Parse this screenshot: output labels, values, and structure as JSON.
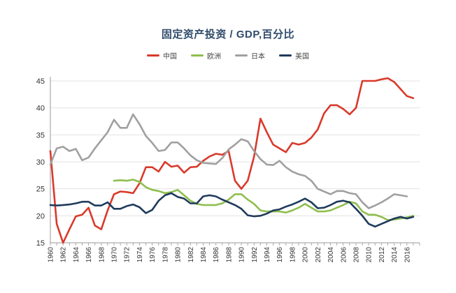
{
  "chart_data": {
    "type": "line",
    "title": "固定资产投资 / GDP,百分比",
    "xlabel": "",
    "ylabel": "",
    "xlim": [
      1960,
      2018
    ],
    "ylim": [
      15,
      45
    ],
    "yticks": [
      15,
      20,
      25,
      30,
      35,
      40,
      45
    ],
    "xticks": [
      1960,
      1962,
      1964,
      1966,
      1968,
      1970,
      1972,
      1974,
      1976,
      1978,
      1980,
      1982,
      1984,
      1986,
      1988,
      1990,
      1992,
      1994,
      1996,
      1998,
      2000,
      2002,
      2004,
      2006,
      2008,
      2010,
      2012,
      2014,
      2016
    ],
    "grid": true,
    "legend_position": "top-center",
    "series": [
      {
        "name": "中国",
        "color": "#d93a2b",
        "points": [
          [
            1960,
            32.0
          ],
          [
            1961,
            18.5
          ],
          [
            1962,
            15.0
          ],
          [
            1963,
            17.5
          ],
          [
            1964,
            19.9
          ],
          [
            1965,
            20.2
          ],
          [
            1966,
            21.5
          ],
          [
            1967,
            18.2
          ],
          [
            1968,
            17.5
          ],
          [
            1969,
            21.0
          ],
          [
            1970,
            24.0
          ],
          [
            1971,
            24.5
          ],
          [
            1972,
            24.4
          ],
          [
            1973,
            24.2
          ],
          [
            1974,
            26.0
          ],
          [
            1975,
            29.0
          ],
          [
            1976,
            29.0
          ],
          [
            1977,
            28.2
          ],
          [
            1978,
            30.0
          ],
          [
            1979,
            29.1
          ],
          [
            1980,
            29.3
          ],
          [
            1981,
            28.0
          ],
          [
            1982,
            29.0
          ],
          [
            1983,
            29.1
          ],
          [
            1984,
            30.2
          ],
          [
            1985,
            31.0
          ],
          [
            1986,
            31.5
          ],
          [
            1987,
            31.3
          ],
          [
            1988,
            32.0
          ],
          [
            1989,
            26.5
          ],
          [
            1990,
            25.0
          ],
          [
            1991,
            26.5
          ],
          [
            1992,
            31.0
          ],
          [
            1993,
            38.0
          ],
          [
            1994,
            35.5
          ],
          [
            1995,
            33.2
          ],
          [
            1996,
            32.5
          ],
          [
            1997,
            31.8
          ],
          [
            1998,
            33.5
          ],
          [
            1999,
            33.2
          ],
          [
            2000,
            33.5
          ],
          [
            2001,
            34.5
          ],
          [
            2002,
            36.0
          ],
          [
            2003,
            39.0
          ],
          [
            2004,
            40.5
          ],
          [
            2005,
            40.5
          ],
          [
            2006,
            39.8
          ],
          [
            2007,
            38.8
          ],
          [
            2008,
            40.0
          ],
          [
            2009,
            45.0
          ],
          [
            2010,
            45.0
          ],
          [
            2011,
            45.0
          ],
          [
            2012,
            45.3
          ],
          [
            2013,
            45.5
          ],
          [
            2014,
            44.8
          ],
          [
            2015,
            43.5
          ],
          [
            2016,
            42.2
          ],
          [
            2017,
            41.8
          ]
        ]
      },
      {
        "name": "欧洲",
        "color": "#8fbe4f",
        "points": [
          [
            1970,
            26.5
          ],
          [
            1971,
            26.6
          ],
          [
            1972,
            26.5
          ],
          [
            1973,
            26.7
          ],
          [
            1974,
            26.3
          ],
          [
            1975,
            25.3
          ],
          [
            1976,
            24.8
          ],
          [
            1977,
            24.6
          ],
          [
            1978,
            24.2
          ],
          [
            1979,
            24.4
          ],
          [
            1980,
            24.8
          ],
          [
            1981,
            23.8
          ],
          [
            1982,
            22.8
          ],
          [
            1983,
            22.2
          ],
          [
            1984,
            22.0
          ],
          [
            1985,
            22.0
          ],
          [
            1986,
            22.0
          ],
          [
            1987,
            22.3
          ],
          [
            1988,
            23.0
          ],
          [
            1989,
            24.0
          ],
          [
            1990,
            24.0
          ],
          [
            1991,
            23.0
          ],
          [
            1992,
            22.2
          ],
          [
            1993,
            21.0
          ],
          [
            1994,
            20.8
          ],
          [
            1995,
            20.8
          ],
          [
            1996,
            20.8
          ],
          [
            1997,
            20.6
          ],
          [
            1998,
            21.0
          ],
          [
            1999,
            21.5
          ],
          [
            2000,
            22.2
          ],
          [
            2001,
            21.5
          ],
          [
            2002,
            20.8
          ],
          [
            2003,
            20.8
          ],
          [
            2004,
            21.0
          ],
          [
            2005,
            21.5
          ],
          [
            2006,
            22.0
          ],
          [
            2007,
            22.6
          ],
          [
            2008,
            22.3
          ],
          [
            2009,
            20.8
          ],
          [
            2010,
            20.2
          ],
          [
            2011,
            20.2
          ],
          [
            2012,
            19.8
          ],
          [
            2013,
            19.2
          ],
          [
            2014,
            19.3
          ],
          [
            2015,
            19.5
          ],
          [
            2016,
            19.7
          ],
          [
            2017,
            20.0
          ]
        ]
      },
      {
        "name": "日本",
        "color": "#a0a0a0",
        "points": [
          [
            1960,
            29.5
          ],
          [
            1961,
            32.5
          ],
          [
            1962,
            32.8
          ],
          [
            1963,
            32.0
          ],
          [
            1964,
            32.4
          ],
          [
            1965,
            30.3
          ],
          [
            1966,
            30.8
          ],
          [
            1967,
            32.5
          ],
          [
            1968,
            34.0
          ],
          [
            1969,
            35.5
          ],
          [
            1970,
            37.8
          ],
          [
            1971,
            36.3
          ],
          [
            1972,
            36.3
          ],
          [
            1973,
            38.8
          ],
          [
            1974,
            37.0
          ],
          [
            1975,
            34.8
          ],
          [
            1976,
            33.5
          ],
          [
            1977,
            32.0
          ],
          [
            1978,
            32.2
          ],
          [
            1979,
            33.6
          ],
          [
            1980,
            33.6
          ],
          [
            1981,
            32.5
          ],
          [
            1982,
            31.2
          ],
          [
            1983,
            30.3
          ],
          [
            1984,
            29.8
          ],
          [
            1985,
            29.7
          ],
          [
            1986,
            29.6
          ],
          [
            1987,
            30.7
          ],
          [
            1988,
            32.3
          ],
          [
            1989,
            33.2
          ],
          [
            1990,
            34.2
          ],
          [
            1991,
            33.8
          ],
          [
            1992,
            32.0
          ],
          [
            1993,
            30.5
          ],
          [
            1994,
            29.5
          ],
          [
            1995,
            29.4
          ],
          [
            1996,
            30.2
          ],
          [
            1997,
            29.0
          ],
          [
            1998,
            28.2
          ],
          [
            1999,
            27.7
          ],
          [
            2000,
            27.4
          ],
          [
            2001,
            26.5
          ],
          [
            2002,
            25.0
          ],
          [
            2003,
            24.5
          ],
          [
            2004,
            24.0
          ],
          [
            2005,
            24.6
          ],
          [
            2006,
            24.6
          ],
          [
            2007,
            24.2
          ],
          [
            2008,
            24.0
          ],
          [
            2009,
            22.5
          ],
          [
            2010,
            21.4
          ],
          [
            2011,
            21.9
          ],
          [
            2012,
            22.5
          ],
          [
            2013,
            23.2
          ],
          [
            2014,
            24.0
          ],
          [
            2015,
            23.8
          ],
          [
            2016,
            23.6
          ]
        ]
      },
      {
        "name": "美国",
        "color": "#1f3a5c",
        "points": [
          [
            1960,
            22.0
          ],
          [
            1961,
            21.9
          ],
          [
            1962,
            22.0
          ],
          [
            1963,
            22.1
          ],
          [
            1964,
            22.3
          ],
          [
            1965,
            22.6
          ],
          [
            1966,
            22.6
          ],
          [
            1967,
            21.9
          ],
          [
            1968,
            21.9
          ],
          [
            1969,
            22.5
          ],
          [
            1970,
            21.3
          ],
          [
            1971,
            21.3
          ],
          [
            1972,
            21.8
          ],
          [
            1973,
            22.1
          ],
          [
            1974,
            21.6
          ],
          [
            1975,
            20.5
          ],
          [
            1976,
            21.1
          ],
          [
            1977,
            22.8
          ],
          [
            1978,
            23.8
          ],
          [
            1979,
            24.2
          ],
          [
            1980,
            23.5
          ],
          [
            1981,
            23.2
          ],
          [
            1982,
            22.3
          ],
          [
            1983,
            22.3
          ],
          [
            1984,
            23.6
          ],
          [
            1985,
            23.8
          ],
          [
            1986,
            23.6
          ],
          [
            1987,
            23.0
          ],
          [
            1988,
            22.5
          ],
          [
            1989,
            22.0
          ],
          [
            1990,
            21.3
          ],
          [
            1991,
            20.1
          ],
          [
            1992,
            19.9
          ],
          [
            1993,
            20.0
          ],
          [
            1994,
            20.4
          ],
          [
            1995,
            21.0
          ],
          [
            1996,
            21.2
          ],
          [
            1997,
            21.7
          ],
          [
            1998,
            22.1
          ],
          [
            1999,
            22.6
          ],
          [
            2000,
            23.2
          ],
          [
            2001,
            22.5
          ],
          [
            2002,
            21.4
          ],
          [
            2003,
            21.5
          ],
          [
            2004,
            22.0
          ],
          [
            2005,
            22.6
          ],
          [
            2006,
            22.8
          ],
          [
            2007,
            22.5
          ],
          [
            2008,
            21.3
          ],
          [
            2009,
            20.0
          ],
          [
            2010,
            18.5
          ],
          [
            2011,
            18.0
          ],
          [
            2012,
            18.5
          ],
          [
            2013,
            19.0
          ],
          [
            2014,
            19.5
          ],
          [
            2015,
            19.8
          ],
          [
            2016,
            19.5
          ],
          [
            2017,
            19.8
          ]
        ]
      }
    ]
  }
}
